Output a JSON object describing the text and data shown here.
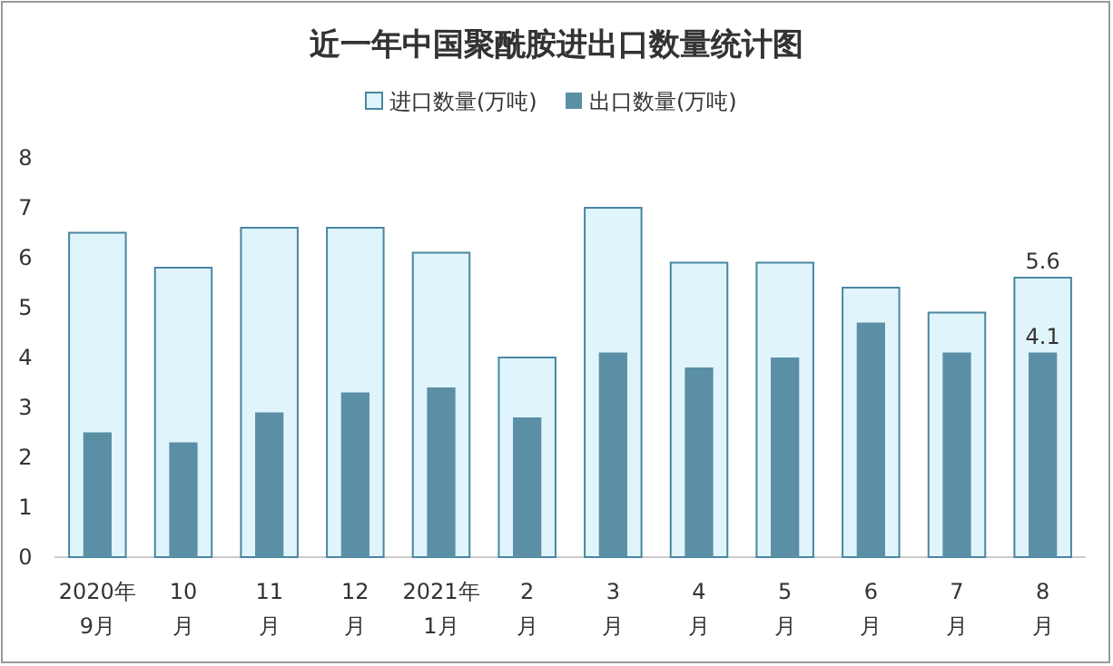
{
  "chart_data": {
    "type": "bar",
    "title": "近一年中国聚酰胺进出口数量统计图",
    "categories": [
      "2020年\n9月",
      "10\n月",
      "11\n月",
      "12\n月",
      "2021年\n1月",
      "2\n月",
      "3\n月",
      "4\n月",
      "5\n月",
      "6\n月",
      "7\n月",
      "8\n月"
    ],
    "series": [
      {
        "name": "进口数量(万吨)",
        "color": "#e0f4fb",
        "values": [
          6.5,
          5.8,
          6.6,
          6.6,
          6.1,
          4.0,
          7.0,
          5.9,
          5.9,
          5.4,
          4.9,
          5.6
        ],
        "value_labels": [
          null,
          null,
          null,
          null,
          null,
          null,
          null,
          null,
          null,
          null,
          null,
          "5.6"
        ]
      },
      {
        "name": "出口数量(万吨)",
        "color": "#5b8fa6",
        "values": [
          2.5,
          2.3,
          2.9,
          3.3,
          3.4,
          2.8,
          4.1,
          3.8,
          4.0,
          4.7,
          4.1,
          4.1
        ],
        "value_labels": [
          null,
          null,
          null,
          null,
          null,
          null,
          null,
          null,
          null,
          null,
          null,
          "4.1"
        ]
      }
    ],
    "ylim": [
      0,
      8
    ],
    "yticks": [
      0,
      1,
      2,
      3,
      4,
      5,
      6,
      7,
      8
    ],
    "grid": false,
    "legend": "top"
  }
}
